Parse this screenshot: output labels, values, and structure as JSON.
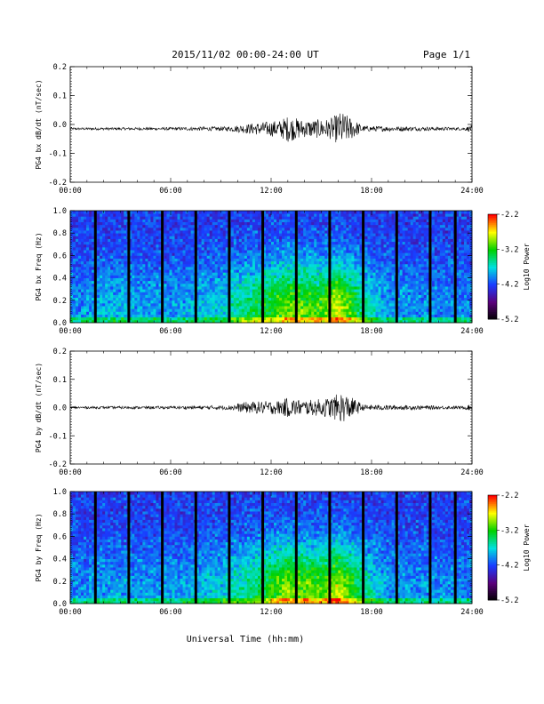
{
  "header": {
    "date_range": "2015/11/02  00:00-24:00 UT",
    "page": "Page 1/1"
  },
  "xlabel": "Universal Time (hh:mm)",
  "colors": {
    "trace": "#000000",
    "spectrogram_ramp": [
      "#000000",
      "#5a007a",
      "#1a3cff",
      "#00e0e0",
      "#00d000",
      "#ffff00",
      "#ff0000"
    ]
  },
  "chart_data": [
    {
      "type": "line",
      "ylabel": "PG4 bx dB/dt (nT/sec)",
      "xlim": [
        0,
        24
      ],
      "x_ticks": [
        "00:00",
        "06:00",
        "12:00",
        "18:00",
        "24:00"
      ],
      "ylim": [
        -0.2,
        0.2
      ],
      "y_ticks": [
        "0.2",
        "0.1",
        "0.0",
        "-0.1",
        "-0.2"
      ],
      "baseline": -0.015,
      "noise_envelope": [
        {
          "x": 0,
          "amp": 0.004
        },
        {
          "x": 6,
          "amp": 0.005
        },
        {
          "x": 9.5,
          "amp": 0.008
        },
        {
          "x": 11,
          "amp": 0.02
        },
        {
          "x": 12.5,
          "amp": 0.03
        },
        {
          "x": 13,
          "amp": 0.045
        },
        {
          "x": 14,
          "amp": 0.03
        },
        {
          "x": 15.5,
          "amp": 0.035
        },
        {
          "x": 16.2,
          "amp": 0.06
        },
        {
          "x": 17,
          "amp": 0.03
        },
        {
          "x": 17.5,
          "amp": 0.01
        },
        {
          "x": 23.5,
          "amp": 0.005
        },
        {
          "x": 24,
          "amp": 0.012
        }
      ]
    },
    {
      "type": "heatmap",
      "ylabel": "PG4 bx Freq (Hz)",
      "xlim": [
        0,
        24
      ],
      "x_ticks": [
        "00:00",
        "06:00",
        "12:00",
        "18:00",
        "24:00"
      ],
      "ylim": [
        0,
        1
      ],
      "y_ticks": [
        "1.0",
        "0.8",
        "0.6",
        "0.4",
        "0.2",
        "0.0"
      ],
      "colorbar_label": "Log10 Power",
      "colorbar_ticks": [
        "-2.2",
        "-3.2",
        "-4.2",
        "-5.2"
      ],
      "zlim": [
        -5.2,
        -2.2
      ],
      "data_gaps_hours": [
        1.5,
        3.5,
        5.5,
        7.5,
        9.5,
        11.5,
        13.5,
        15.5,
        17.5,
        19.5,
        21.5,
        23.0
      ],
      "activity": [
        {
          "x": 0,
          "level": 0.15
        },
        {
          "x": 2,
          "level": 0.25
        },
        {
          "x": 6,
          "level": 0.2
        },
        {
          "x": 9,
          "level": 0.3
        },
        {
          "x": 11,
          "level": 0.55
        },
        {
          "x": 13,
          "level": 0.75
        },
        {
          "x": 15,
          "level": 0.7
        },
        {
          "x": 16,
          "level": 0.9
        },
        {
          "x": 17.5,
          "level": 0.45
        },
        {
          "x": 19,
          "level": 0.2
        },
        {
          "x": 24,
          "level": 0.15
        }
      ]
    },
    {
      "type": "line",
      "ylabel": "PG4 by dB/dt (nT/sec)",
      "xlim": [
        0,
        24
      ],
      "x_ticks": [
        "00:00",
        "06:00",
        "12:00",
        "18:00",
        "24:00"
      ],
      "ylim": [
        -0.2,
        0.2
      ],
      "y_ticks": [
        "0.2",
        "0.1",
        "0.0",
        "-0.1",
        "-0.2"
      ],
      "baseline": 0.0,
      "noise_envelope": [
        {
          "x": 0,
          "amp": 0.004
        },
        {
          "x": 6,
          "amp": 0.005
        },
        {
          "x": 9.5,
          "amp": 0.008
        },
        {
          "x": 10.5,
          "amp": 0.02
        },
        {
          "x": 12.5,
          "amp": 0.025
        },
        {
          "x": 13,
          "amp": 0.035
        },
        {
          "x": 14,
          "amp": 0.025
        },
        {
          "x": 15.5,
          "amp": 0.035
        },
        {
          "x": 16.2,
          "amp": 0.055
        },
        {
          "x": 17,
          "amp": 0.03
        },
        {
          "x": 17.5,
          "amp": 0.01
        },
        {
          "x": 23.5,
          "amp": 0.005
        },
        {
          "x": 24,
          "amp": 0.012
        }
      ]
    },
    {
      "type": "heatmap",
      "ylabel": "PG4 by Freq (Hz)",
      "xlim": [
        0,
        24
      ],
      "x_ticks": [
        "00:00",
        "06:00",
        "12:00",
        "18:00",
        "24:00"
      ],
      "ylim": [
        0,
        1
      ],
      "y_ticks": [
        "1.0",
        "0.8",
        "0.6",
        "0.4",
        "0.2",
        "0.0"
      ],
      "colorbar_label": "Log10 Power",
      "colorbar_ticks": [
        "-2.2",
        "-3.2",
        "-4.2",
        "-5.2"
      ],
      "zlim": [
        -5.2,
        -2.2
      ],
      "data_gaps_hours": [
        1.5,
        3.5,
        5.5,
        7.5,
        9.5,
        11.5,
        13.5,
        15.5,
        17.5,
        19.5,
        21.5,
        23.0
      ],
      "activity": [
        {
          "x": 0,
          "level": 0.15
        },
        {
          "x": 2,
          "level": 0.2
        },
        {
          "x": 6,
          "level": 0.2
        },
        {
          "x": 9,
          "level": 0.3
        },
        {
          "x": 11,
          "level": 0.5
        },
        {
          "x": 13,
          "level": 0.8
        },
        {
          "x": 15,
          "level": 0.7
        },
        {
          "x": 16,
          "level": 0.9
        },
        {
          "x": 17.5,
          "level": 0.45
        },
        {
          "x": 19,
          "level": 0.2
        },
        {
          "x": 24,
          "level": 0.15
        }
      ]
    }
  ]
}
